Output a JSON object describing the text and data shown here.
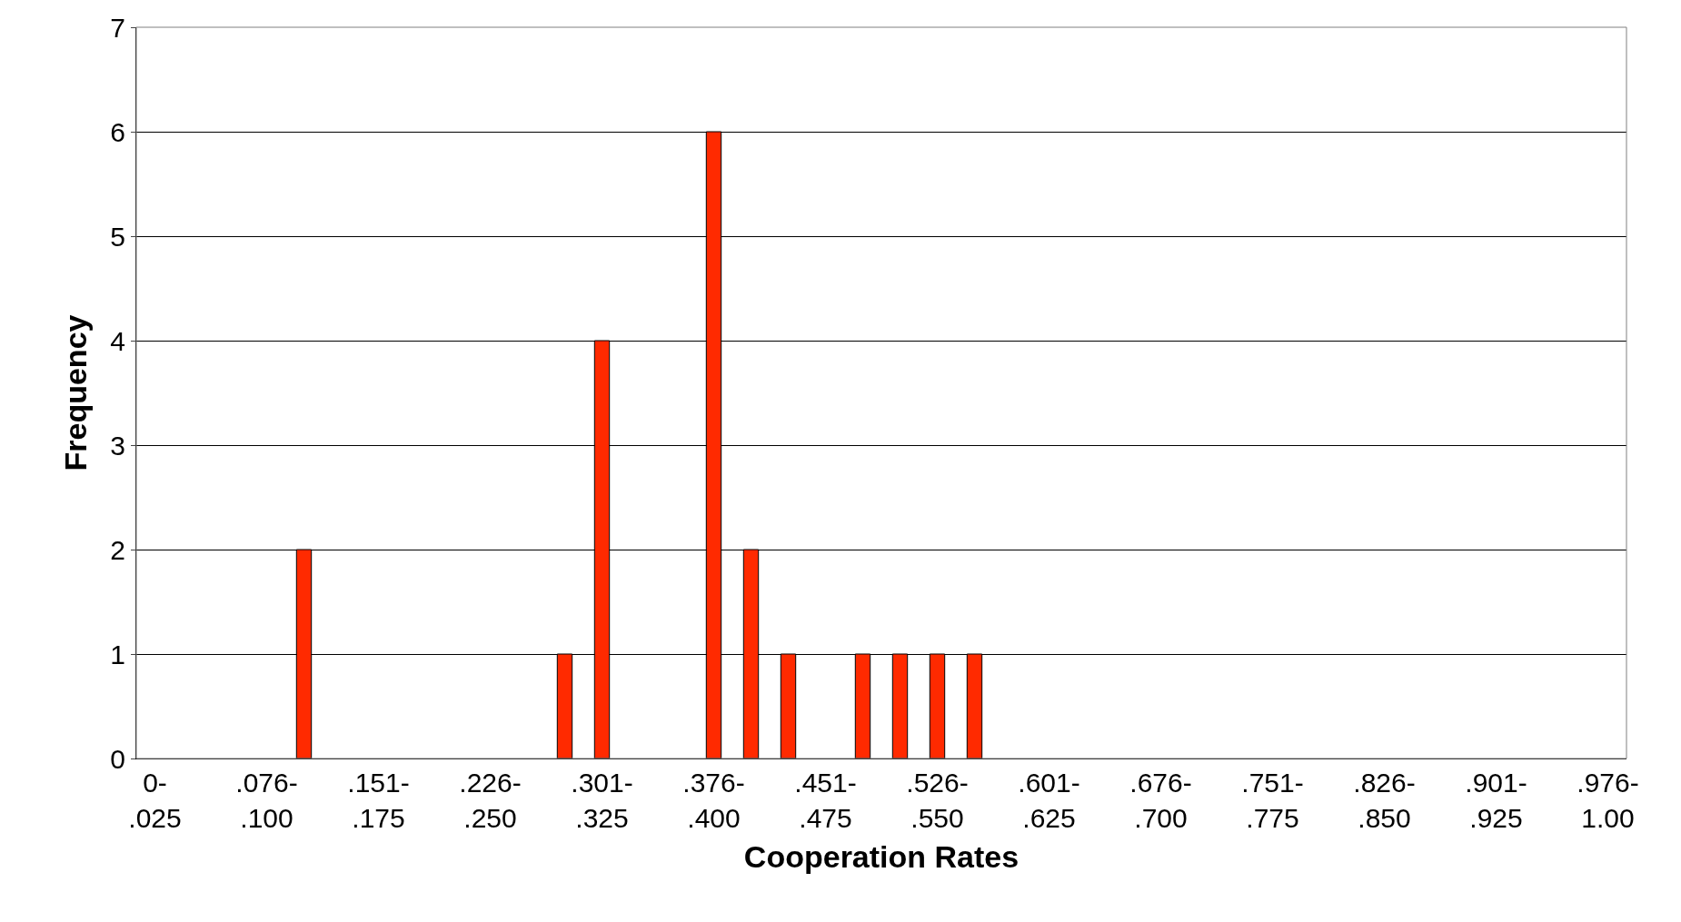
{
  "chart_data": {
    "type": "bar",
    "xlabel": "Cooperation Rates",
    "ylabel": "Frequency",
    "categories": [
      "0-\n.025",
      null,
      null,
      ".076-\n.100",
      null,
      null,
      ".151-\n.175",
      null,
      null,
      ".226-\n.250",
      null,
      null,
      ".301-\n.325",
      null,
      null,
      ".376-\n.400",
      null,
      null,
      ".451-\n.475",
      null,
      null,
      ".526-\n.550",
      null,
      null,
      ".601-\n.625",
      null,
      null,
      ".676-\n.700",
      null,
      null,
      ".751-\n.775",
      null,
      null,
      ".826-\n.850",
      null,
      null,
      ".901-\n.925",
      null,
      null,
      ".976-\n1.00"
    ],
    "values": [
      0,
      0,
      0,
      0,
      2,
      0,
      0,
      0,
      0,
      0,
      0,
      1,
      4,
      0,
      0,
      6,
      2,
      1,
      0,
      1,
      1,
      1,
      1,
      0,
      0,
      0,
      0,
      0,
      0,
      0,
      0,
      0,
      0,
      0,
      0,
      0,
      0,
      0,
      0,
      0
    ],
    "color": "#ff2a00",
    "ylim": [
      0,
      7
    ],
    "yticks": [
      0,
      1,
      2,
      3,
      4,
      5,
      6,
      7
    ],
    "grid": "y",
    "legend": false
  }
}
